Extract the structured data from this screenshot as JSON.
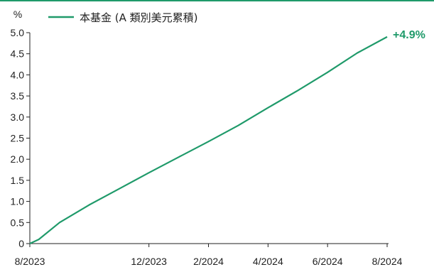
{
  "chart_data": {
    "type": "line",
    "title": "",
    "xlabel": "",
    "ylabel": "%",
    "ylim": [
      0,
      5.0
    ],
    "yticks": [
      "0",
      "0.5",
      "1.0",
      "1.5",
      "2.0",
      "2.5",
      "3.0",
      "3.5",
      "4.0",
      "4.5",
      "5.0"
    ],
    "ytick_values": [
      0,
      0.5,
      1.0,
      1.5,
      2.0,
      2.5,
      3.0,
      3.5,
      4.0,
      4.5,
      5.0
    ],
    "xticks": [
      {
        "label": "8/2023",
        "month_index": 0
      },
      {
        "label": "12/2023",
        "month_index": 4
      },
      {
        "label": "2/2024",
        "month_index": 6
      },
      {
        "label": "4/2024",
        "month_index": 8
      },
      {
        "label": "6/2024",
        "month_index": 10
      },
      {
        "label": "8/2024",
        "month_index": 12
      }
    ],
    "series": [
      {
        "name": "本基金 (A 類別美元累積)",
        "x": [
          0,
          0.3,
          1,
          2,
          3,
          4,
          5,
          6,
          7,
          8,
          9,
          10,
          11,
          12
        ],
        "y": [
          0,
          0.1,
          0.5,
          0.92,
          1.3,
          1.68,
          2.05,
          2.42,
          2.8,
          3.22,
          3.63,
          4.06,
          4.52,
          4.9
        ]
      }
    ],
    "end_label": "+4.9%",
    "legend_position": "top-left",
    "grid": false,
    "colors": {
      "series": "#1f9a6a",
      "axis": "#222222",
      "top_rule": "#1f9a6a"
    }
  }
}
